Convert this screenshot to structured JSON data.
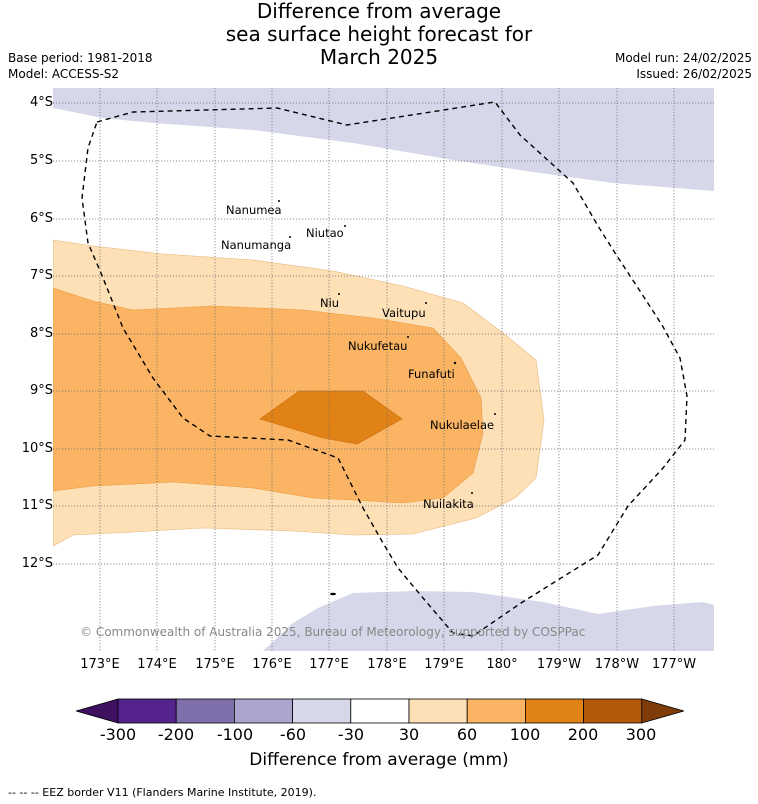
{
  "title": {
    "line1": "Difference from average",
    "line2": "sea surface height forecast for",
    "line3": "March 2025"
  },
  "meta": {
    "base_period": "Base period: 1981-2018",
    "model": "Model: ACCESS-S2",
    "model_run": "Model run: 24/02/2025",
    "issued": "Issued: 26/02/2025"
  },
  "axes": {
    "lat_labels": [
      "4°S",
      "5°S",
      "6°S",
      "7°S",
      "8°S",
      "9°S",
      "10°S",
      "11°S",
      "12°S"
    ],
    "lon_labels": [
      "173°E",
      "174°E",
      "175°E",
      "176°E",
      "177°E",
      "178°E",
      "179°E",
      "180°",
      "179°W",
      "178°W",
      "177°W"
    ]
  },
  "islands": [
    {
      "name": "Nanumea"
    },
    {
      "name": "Nanumanga"
    },
    {
      "name": "Niutao"
    },
    {
      "name": "Niu"
    },
    {
      "name": "Vaitupu"
    },
    {
      "name": "Nukufetau"
    },
    {
      "name": "Funafuti"
    },
    {
      "name": "Nukulaelae"
    },
    {
      "name": "Nuilakita"
    }
  ],
  "copyright": "© Commonwealth of Australia 2025, Bureau of Meteorology, supported by COSPPac",
  "colorbar": {
    "ticks": [
      "-300",
      "-200",
      "-100",
      "-60",
      "-30",
      "30",
      "60",
      "100",
      "200",
      "300"
    ],
    "colors": [
      "#3d1060",
      "#54238c",
      "#7f70ab",
      "#aca6cf",
      "#d7d7ea",
      "#ffffff",
      "#fde0b6",
      "#fbb463",
      "#e08215",
      "#b35907",
      "#7f3b08"
    ],
    "label": "Difference from average (mm)"
  },
  "footer": "--  --  -- EEZ border V11 (Flanders Marine Institute, 2019).",
  "colors": {
    "negative_light": "#d7d7ea",
    "positive_light": "#fde0b6",
    "positive_mid": "#fbb463",
    "positive_high": "#e08215"
  }
}
